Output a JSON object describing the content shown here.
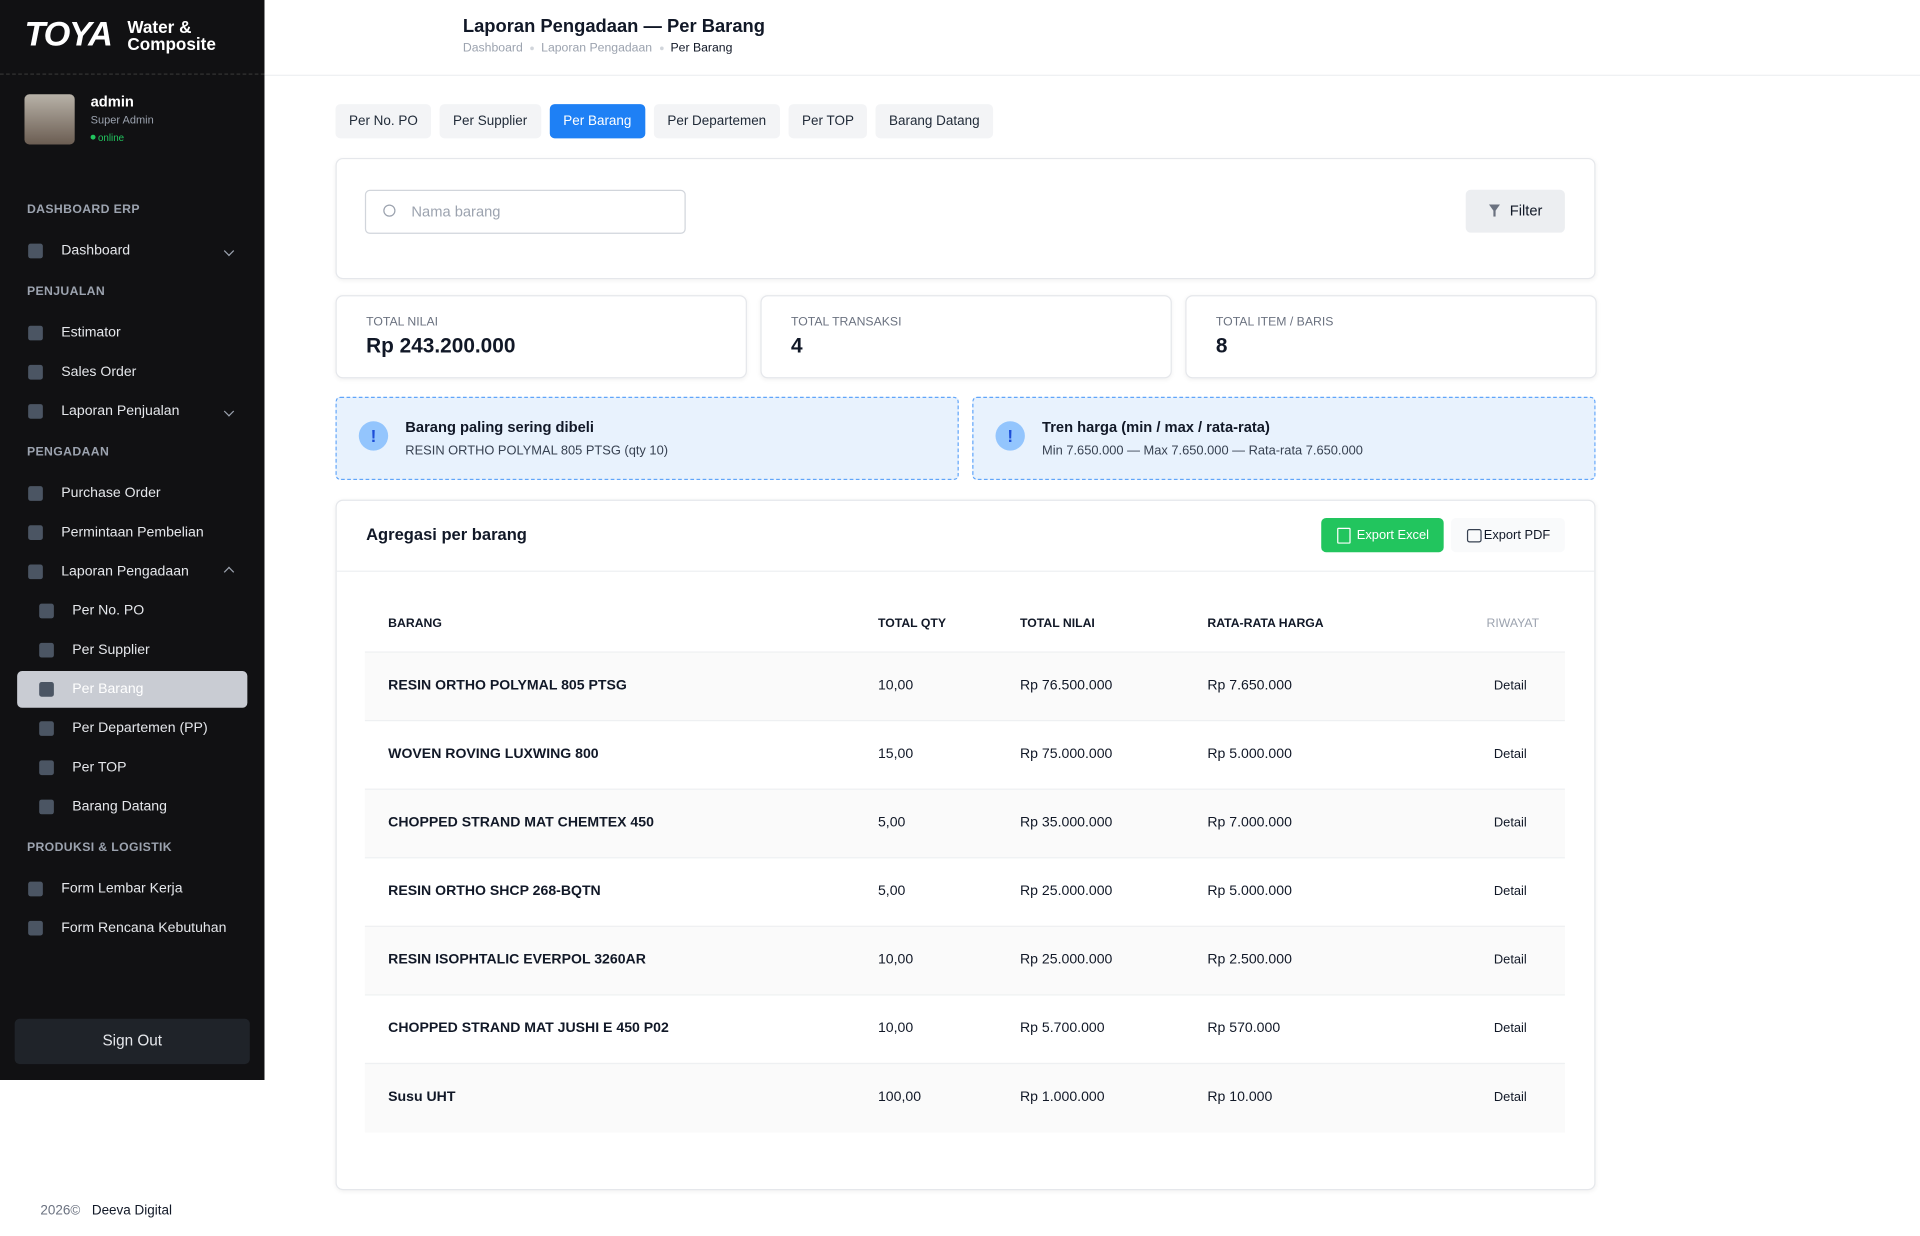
{
  "sidebar": {
    "brand": "TOYA",
    "brand_sub": "Water & Composite",
    "user": {
      "name": "admin",
      "role": "Super Admin",
      "status": "online"
    },
    "sections": [
      {
        "title": "DASHBOARD ERP",
        "items": [
          {
            "label": "Dashboard"
          }
        ]
      },
      {
        "title": "PENJUALAN",
        "items": [
          {
            "label": "Estimator"
          },
          {
            "label": "Sales Order"
          },
          {
            "label": "Laporan Penjualan"
          }
        ]
      },
      {
        "title": "PENGADAAN",
        "items": [
          {
            "label": "Purchase Order"
          },
          {
            "label": "Permintaan Pembelian"
          },
          {
            "label": "Laporan Pengadaan",
            "children": [
              "Per No. PO",
              "Per Supplier",
              "Per Barang",
              "Per Departemen (PP)",
              "Per TOP",
              "Barang Datang"
            ]
          }
        ]
      },
      {
        "title": "PRODUKSI & LOGISTIK",
        "items": [
          {
            "label": "Form Lembar Kerja"
          },
          {
            "label": "Form Rencana Kebutuhan"
          }
        ]
      }
    ],
    "sign_out": "Sign Out"
  },
  "header": {
    "title": "Laporan Pengadaan — Per Barang",
    "breadcrumb": [
      "Dashboard",
      "Laporan Pengadaan",
      "Per Barang"
    ]
  },
  "tabs": [
    "Per No. PO",
    "Per Supplier",
    "Per Barang",
    "Per Departemen",
    "Per TOP",
    "Barang Datang"
  ],
  "search": {
    "placeholder": "Nama barang",
    "filter": "Filter"
  },
  "stats": [
    {
      "label": "TOTAL NILAI",
      "value": "Rp 243.200.000"
    },
    {
      "label": "TOTAL TRANSAKSI",
      "value": "4"
    },
    {
      "label": "TOTAL ITEM / BARIS",
      "value": "8"
    }
  ],
  "info": [
    {
      "title": "Barang paling sering dibeli",
      "text": "RESIN ORTHO POLYMAL 805 PTSG (qty 10)"
    },
    {
      "title": "Tren harga (min / max / rata-rata)",
      "text": "Min 7.650.000 — Max 7.650.000 — Rata-rata 7.650.000"
    }
  ],
  "table": {
    "title": "Agregasi per barang",
    "export_excel": "Export Excel",
    "export_pdf": "Export PDF",
    "columns": [
      "BARANG",
      "TOTAL QTY",
      "TOTAL NILAI",
      "RATA-RATA HARGA",
      "RIWAYAT"
    ],
    "rows": [
      [
        "RESIN ORTHO POLYMAL 805 PTSG",
        "10,00",
        "Rp 76.500.000",
        "Rp 7.650.000",
        "Detail"
      ],
      [
        "WOVEN ROVING LUXWING 800",
        "15,00",
        "Rp 75.000.000",
        "Rp 5.000.000",
        "Detail"
      ],
      [
        "CHOPPED STRAND MAT CHEMTEX 450",
        "5,00",
        "Rp 35.000.000",
        "Rp 7.000.000",
        "Detail"
      ],
      [
        "RESIN ORTHO SHCP 268-BQTN",
        "5,00",
        "Rp 25.000.000",
        "Rp 5.000.000",
        "Detail"
      ],
      [
        "RESIN ISOPHTALIC EVERPOL 3260AR",
        "10,00",
        "Rp 25.000.000",
        "Rp 2.500.000",
        "Detail"
      ],
      [
        "CHOPPED STRAND MAT JUSHI E 450 P02",
        "10,00",
        "Rp 5.700.000",
        "Rp 570.000",
        "Detail"
      ],
      [
        "Susu UHT",
        "100,00",
        "Rp 1.000.000",
        "Rp 10.000",
        "Detail"
      ]
    ]
  },
  "footer": {
    "year": "2026©",
    "company": "Deeva Digital"
  }
}
